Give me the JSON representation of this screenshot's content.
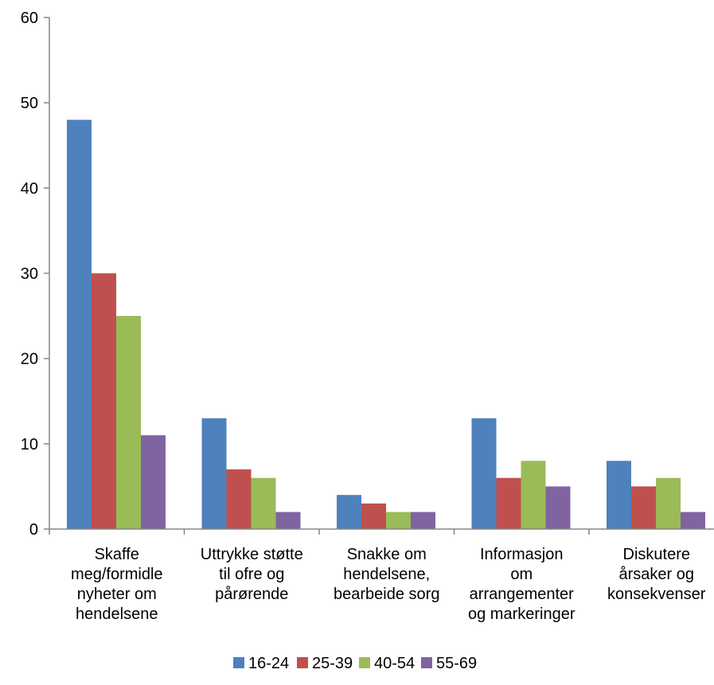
{
  "chart_data": {
    "type": "bar",
    "categories": [
      [
        "Skaffe",
        "meg/formidle",
        "nyheter om",
        "hendelsene"
      ],
      [
        "Uttrykke støtte",
        "til ofre og",
        "pårørende"
      ],
      [
        "Snakke om",
        "hendelsene,",
        "bearbeide sorg"
      ],
      [
        "Informasjon",
        "om",
        "arrangementer",
        "og markeringer"
      ],
      [
        "Diskutere",
        "årsaker og",
        "konsekvenser"
      ]
    ],
    "series": [
      {
        "name": "16-24",
        "color": "#4F81BD",
        "values": [
          48,
          13,
          4,
          13,
          8
        ]
      },
      {
        "name": "25-39",
        "color": "#C0504D",
        "values": [
          30,
          7,
          3,
          6,
          5
        ]
      },
      {
        "name": "40-54",
        "color": "#9BBB59",
        "values": [
          25,
          6,
          2,
          8,
          6
        ]
      },
      {
        "name": "55-69",
        "color": "#8064A2",
        "values": [
          11,
          2,
          2,
          5,
          2
        ]
      }
    ],
    "yticks": [
      "0",
      "10",
      "20",
      "30",
      "40",
      "50",
      "60"
    ],
    "ylim": [
      0,
      60
    ],
    "grid": false,
    "legend": "bottom"
  }
}
